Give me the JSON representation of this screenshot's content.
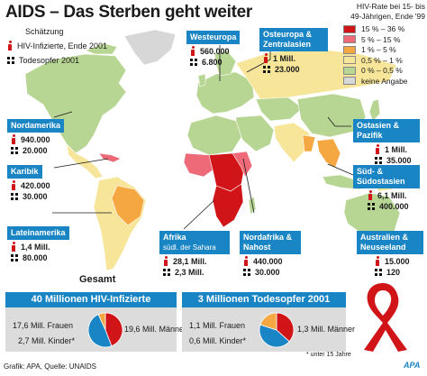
{
  "title": "AIDS – Das Sterben geht weiter",
  "legend": {
    "note": "Schätzung",
    "infected_label": "HIV-Infizierte, Ende 2001",
    "deaths_label": "Todesopfer 2001",
    "infected_icon": "person-icon",
    "deaths_icon": "death-squares-icon"
  },
  "rate_legend": {
    "title": "HIV-Rate bei 15- bis 49-Jährigen, Ende '99",
    "items": [
      {
        "label": "15 % – 36 %",
        "color": "#d01418"
      },
      {
        "label": "5 % – 15 %",
        "color": "#ef6a78"
      },
      {
        "label": "1 % – 5 %",
        "color": "#f5a742"
      },
      {
        "label": "0,5 % – 1 %",
        "color": "#f7e59a"
      },
      {
        "label": "0 % – 0,5 %",
        "color": "#b8d693"
      },
      {
        "label": "keine Angabe",
        "color": "#d7d7d7"
      }
    ]
  },
  "regions": [
    {
      "name": "Westeuropa",
      "infected": "560.000",
      "deaths": "6.800"
    },
    {
      "name": "Osteuropa & Zentralasien",
      "infected": "1 Mill.",
      "deaths": "23.000"
    },
    {
      "name": "Nordamerika",
      "infected": "940.000",
      "deaths": "20.000"
    },
    {
      "name": "Karibik",
      "infected": "420.000",
      "deaths": "30.000"
    },
    {
      "name": "Lateinamerika",
      "infected": "1,4 Mill.",
      "deaths": "80.000"
    },
    {
      "name": "Afrika",
      "subname": "südl. der Sahara",
      "infected": "28,1 Mill.",
      "deaths": "2,3 Mill."
    },
    {
      "name": "Nordafrika & Nahost",
      "infected": "440.000",
      "deaths": "30.000"
    },
    {
      "name": "Ostasien & Pazifik",
      "infected": "1 Mill.",
      "deaths": "35.000"
    },
    {
      "name": "Süd- & Südostasien",
      "infected": "6,1 Mill.",
      "deaths": "400.000"
    },
    {
      "name": "Australien & Neuseeland",
      "infected": "15.000",
      "deaths": "120"
    }
  ],
  "summary": {
    "label": "Gesamt",
    "hiv": {
      "title": "40 Millionen HIV-Infizierte",
      "women": "17,6 Mill. Frauen",
      "men": "19,6 Mill. Männer",
      "children": "2,7 Mill. Kinder*",
      "pie": [
        17.6,
        19.6,
        2.7
      ]
    },
    "deaths": {
      "title": "3 Millionen Todesopfer 2001",
      "women": "1,1 Mill. Frauen",
      "men": "1,3 Mill. Männer",
      "children": "0,6 Mill. Kinder*",
      "pie": [
        1.1,
        1.3,
        0.6
      ]
    },
    "pie_colors": {
      "women": "#d01418",
      "men": "#1a85c4",
      "children": "#f5a742"
    }
  },
  "footnote": "* unter 15 Jahre",
  "source": "Grafik: APA, Quelle: UNAIDS",
  "brand": "APA"
}
